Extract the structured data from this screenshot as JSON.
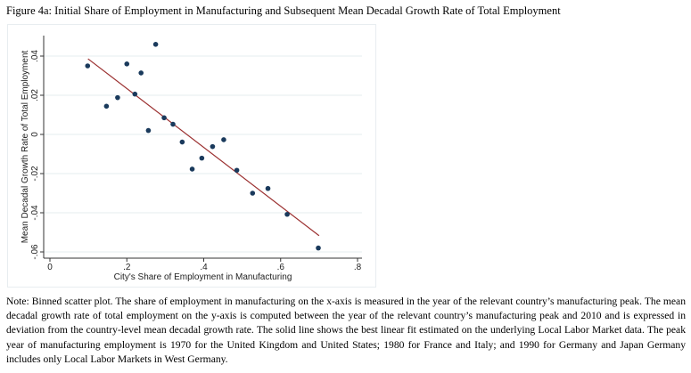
{
  "title": "Figure 4a: Initial Share of Employment in Manufacturing and Subsequent Mean Decadal Growth Rate of Total Employment",
  "chart_data": {
    "type": "scatter",
    "title": "Figure 4a: Initial Share of Employment in Manufacturing and Subsequent Mean Decadal Growth Rate of Total Employment",
    "xlabel": "City's Share of Employment in Manufacturing",
    "ylabel": "Mean Decadal Growth Rate of Total Employment",
    "xlim": [
      -0.016,
      0.82
    ],
    "ylim": [
      -0.063,
      0.049
    ],
    "xticks": [
      0,
      0.2,
      0.4,
      0.6,
      0.8
    ],
    "xtick_labels": [
      "0",
      ".2",
      ".4",
      ".6",
      ".8"
    ],
    "yticks": [
      -0.06,
      -0.04,
      -0.02,
      0,
      0.02,
      0.04
    ],
    "ytick_labels": [
      "-.06",
      "-.04",
      "-.02",
      "0",
      ".02",
      ".04"
    ],
    "grid": "horizontal",
    "point_color": "#1a3a5c",
    "line_color": "#9b3030",
    "points": [
      [
        0.098,
        0.035
      ],
      [
        0.147,
        0.0144
      ],
      [
        0.176,
        0.0188
      ],
      [
        0.2,
        0.036
      ],
      [
        0.221,
        0.0206
      ],
      [
        0.237,
        0.0314
      ],
      [
        0.256,
        0.002
      ],
      [
        0.275,
        0.046
      ],
      [
        0.297,
        0.0085
      ],
      [
        0.32,
        0.0052
      ],
      [
        0.344,
        -0.0039
      ],
      [
        0.37,
        -0.0177
      ],
      [
        0.395,
        -0.0121
      ],
      [
        0.423,
        -0.0062
      ],
      [
        0.452,
        -0.0027
      ],
      [
        0.486,
        -0.0183
      ],
      [
        0.527,
        -0.03
      ],
      [
        0.567,
        -0.0276
      ],
      [
        0.617,
        -0.0408
      ],
      [
        0.698,
        -0.058
      ]
    ],
    "fit_line": [
      [
        0.099,
        0.0386
      ],
      [
        0.7,
        -0.0517
      ]
    ]
  },
  "note": "Note: Binned scatter plot. The share of employment in manufacturing on the x-axis is measured in the year of the relevant country’s manufacturing peak. The mean decadal growth rate of total employment on the y-axis is computed between the year of the relevant country’s manufacturing peak and 2010 and is expressed in deviation from the country-level mean decadal growth rate. The solid line shows the best linear fit estimated on the underlying Local Labor Market data. The peak year of manufacturing employment is 1970 for the United Kingdom and United States; 1980 for France and Italy; and 1990 for Germany and Japan Germany includes only Local Labor Markets in West Germany."
}
